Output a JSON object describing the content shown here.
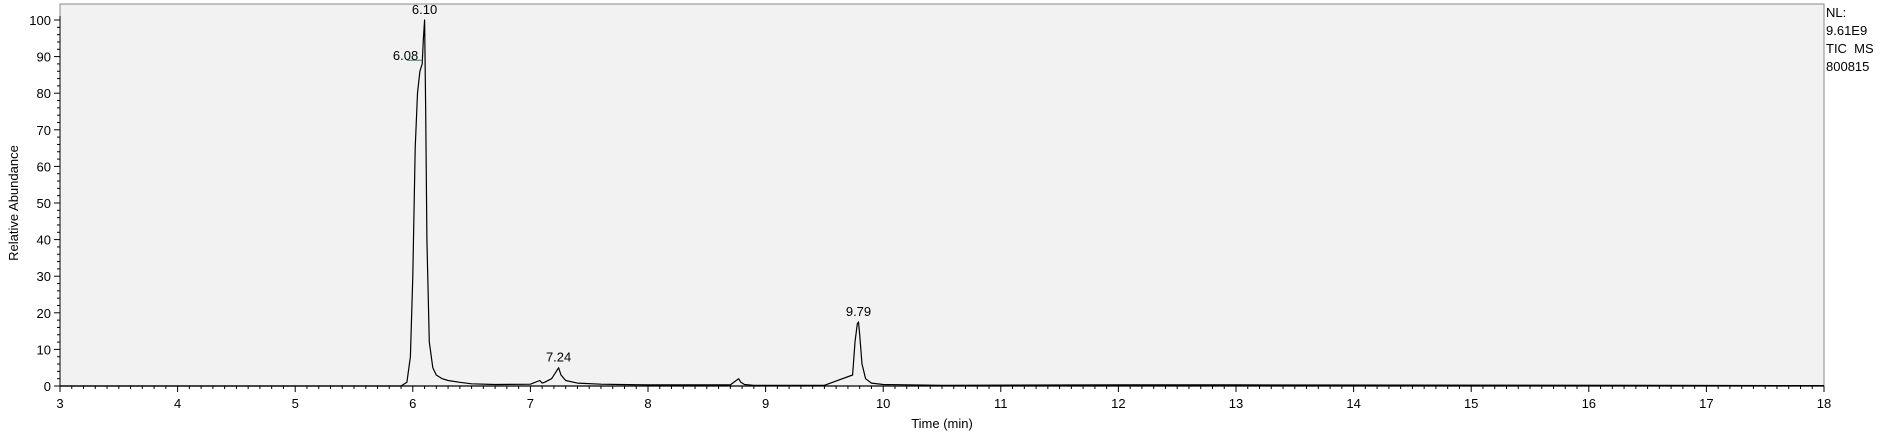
{
  "chart_data": {
    "type": "line",
    "xlabel": "Time (min)",
    "ylabel": "Relative Abundance",
    "xlim": [
      3,
      18
    ],
    "ylim": [
      0,
      100
    ],
    "x_ticks": [
      "3",
      "4",
      "5",
      "6",
      "7",
      "8",
      "9",
      "10",
      "11",
      "12",
      "13",
      "14",
      "15",
      "16",
      "17",
      "18"
    ],
    "y_ticks": [
      "0",
      "10",
      "20",
      "30",
      "40",
      "50",
      "60",
      "70",
      "80",
      "90",
      "100"
    ],
    "grid": false,
    "series": [
      {
        "x": [
          3.0,
          5.9,
          5.95,
          5.98,
          6.0,
          6.02,
          6.04,
          6.06,
          6.08,
          6.09,
          6.1,
          6.11,
          6.12,
          6.14,
          6.17,
          6.2,
          6.25,
          6.3,
          6.4,
          6.5,
          6.7,
          7.0,
          7.08,
          7.1,
          7.12,
          7.18,
          7.22,
          7.24,
          7.26,
          7.3,
          7.4,
          7.6,
          8.0,
          8.7,
          8.77,
          8.79,
          8.82,
          8.9,
          9.5,
          9.74,
          9.76,
          9.78,
          9.79,
          9.8,
          9.82,
          9.85,
          9.9,
          10.0,
          10.5,
          12.0,
          13.0,
          18.0
        ],
        "y": [
          0,
          0,
          1,
          8,
          30,
          65,
          80,
          86,
          88,
          95,
          100,
          75,
          40,
          12,
          5,
          3,
          2,
          1.5,
          1,
          0.6,
          0.4,
          0.5,
          1.5,
          0.8,
          1,
          2,
          4,
          5,
          3,
          1.5,
          0.8,
          0.5,
          0.3,
          0.3,
          2,
          1,
          0.4,
          0.2,
          0.2,
          3,
          12,
          17,
          17.5,
          14,
          6,
          2,
          0.8,
          0.4,
          0.2,
          0.3,
          0.3,
          0.1
        ]
      }
    ],
    "peak_labels": [
      {
        "x": 6.1,
        "y": 100,
        "text": "6.10"
      },
      {
        "x": 6.08,
        "y": 88,
        "text": "6.08"
      },
      {
        "x": 7.24,
        "y": 5,
        "text": "7.24"
      },
      {
        "x": 9.79,
        "y": 17.5,
        "text": "9.79"
      }
    ]
  },
  "info": {
    "nl_label": "NL:",
    "nl_value": "9.61E9",
    "trace": "TIC  MS",
    "sample": "800815"
  }
}
